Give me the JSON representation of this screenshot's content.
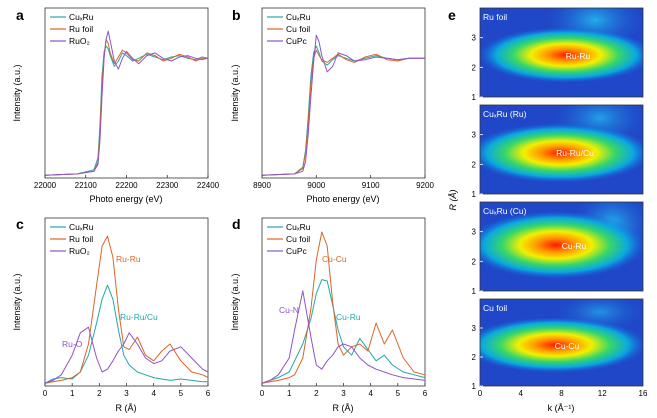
{
  "panels_text": {
    "a": {
      "letter": "a",
      "xlabel": "Photo energy (eV)",
      "ylabel": "Intensity (a.u.)",
      "legend": [
        "CuₓRu",
        "Ru foil",
        "RuO₂"
      ]
    },
    "b": {
      "letter": "b",
      "xlabel": "Photo energy (eV)",
      "ylabel": "Intensity (a.u.)",
      "legend": [
        "CuₓRu",
        "Cu foil",
        "CuPc"
      ]
    },
    "c": {
      "letter": "c",
      "xlabel": "R (Å)",
      "ylabel": "Intensity (a.u.)",
      "legend": [
        "CuₓRu",
        "Ru foil",
        "RuO₂"
      ],
      "annotations": [
        "Ru-Ru",
        "Ru-Ru/Cu",
        "Ru-O"
      ]
    },
    "d": {
      "letter": "d",
      "xlabel": "R (Å)",
      "ylabel": "Intensity (a.u.)",
      "legend": [
        "CuₓRu",
        "Cu foil",
        "CuPc"
      ],
      "annotations": [
        "Cu-Cu",
        "Cu-N",
        "Cu-Ru"
      ]
    },
    "e": {
      "letter": "e",
      "xlabel": "k (Å⁻¹)",
      "ylabel": "R (Å)",
      "subpanels": [
        {
          "label": "Ru foil",
          "peak": "Ru-Ru"
        },
        {
          "label": "CuₓRu (Ru)",
          "peak": "Ru-Ru/Cu"
        },
        {
          "label": "CuₓRu (Cu)",
          "peak": "Cu-Ru"
        },
        {
          "label": "Cu foil",
          "peak": "Cu-Cu"
        }
      ]
    }
  },
  "colors": {
    "series1": "#20a9a6",
    "series2": "#d9652a",
    "series3": "#8e55c8"
  },
  "chart_data": [
    {
      "panel": "a",
      "type": "line",
      "xlabel": "Photo energy (eV)",
      "ylabel": "Intensity (a.u.)",
      "xlim": [
        22000,
        22400
      ],
      "ylim": [
        0,
        1.25
      ],
      "xticks": [
        22000,
        22100,
        22200,
        22300,
        22400
      ],
      "series": [
        {
          "name": "CuₓRu",
          "x": [
            22000,
            22080,
            22120,
            22130,
            22135,
            22140,
            22145,
            22150,
            22155,
            22160,
            22170,
            22180,
            22190,
            22200,
            22215,
            22230,
            22250,
            22270,
            22290,
            22310,
            22330,
            22350,
            22370,
            22385,
            22400
          ],
          "y": [
            0.02,
            0.03,
            0.06,
            0.15,
            0.4,
            0.75,
            0.93,
            0.97,
            0.95,
            0.9,
            0.82,
            0.86,
            0.92,
            0.9,
            0.86,
            0.88,
            0.91,
            0.89,
            0.87,
            0.89,
            0.9,
            0.88,
            0.87,
            0.89,
            0.88
          ]
        },
        {
          "name": "Ru foil",
          "x": [
            22000,
            22080,
            22120,
            22130,
            22135,
            22140,
            22145,
            22150,
            22155,
            22160,
            22170,
            22180,
            22190,
            22200,
            22215,
            22230,
            22250,
            22270,
            22290,
            22310,
            22330,
            22350,
            22370,
            22385,
            22400
          ],
          "y": [
            0.02,
            0.03,
            0.05,
            0.12,
            0.35,
            0.7,
            0.9,
            1.02,
            0.99,
            0.92,
            0.84,
            0.89,
            0.94,
            0.92,
            0.87,
            0.86,
            0.92,
            0.9,
            0.86,
            0.88,
            0.91,
            0.89,
            0.86,
            0.88,
            0.88
          ]
        },
        {
          "name": "RuO₂",
          "x": [
            22000,
            22080,
            22120,
            22130,
            22135,
            22140,
            22145,
            22150,
            22155,
            22160,
            22170,
            22180,
            22190,
            22200,
            22215,
            22230,
            22250,
            22270,
            22290,
            22310,
            22330,
            22350,
            22370,
            22385,
            22400
          ],
          "y": [
            0.02,
            0.03,
            0.05,
            0.1,
            0.28,
            0.6,
            0.88,
            1.02,
            1.08,
            1.01,
            0.86,
            0.8,
            0.88,
            0.93,
            0.88,
            0.84,
            0.9,
            0.92,
            0.88,
            0.86,
            0.89,
            0.9,
            0.88,
            0.87,
            0.88
          ]
        }
      ]
    },
    {
      "panel": "b",
      "type": "line",
      "xlabel": "Photo energy (eV)",
      "ylabel": "Intensity (a.u.)",
      "xlim": [
        8900,
        9200
      ],
      "ylim": [
        0,
        1.25
      ],
      "xticks": [
        8900,
        9000,
        9100,
        9200
      ],
      "series": [
        {
          "name": "CuₓRu",
          "x": [
            8900,
            8960,
            8975,
            8980,
            8985,
            8990,
            8995,
            9000,
            9005,
            9010,
            9020,
            9030,
            9040,
            9055,
            9070,
            9090,
            9110,
            9130,
            9150,
            9170,
            9200
          ],
          "y": [
            0.02,
            0.03,
            0.08,
            0.2,
            0.45,
            0.75,
            0.92,
            0.97,
            0.92,
            0.86,
            0.83,
            0.87,
            0.9,
            0.88,
            0.86,
            0.88,
            0.9,
            0.88,
            0.87,
            0.88,
            0.88
          ]
        },
        {
          "name": "Cu foil",
          "x": [
            8900,
            8960,
            8975,
            8980,
            8985,
            8990,
            8995,
            9000,
            9005,
            9010,
            9020,
            9030,
            9040,
            9055,
            9070,
            9090,
            9110,
            9130,
            9150,
            9170,
            9200
          ],
          "y": [
            0.02,
            0.03,
            0.07,
            0.18,
            0.4,
            0.7,
            0.88,
            0.94,
            0.9,
            0.87,
            0.85,
            0.88,
            0.91,
            0.87,
            0.85,
            0.89,
            0.91,
            0.87,
            0.86,
            0.88,
            0.88
          ]
        },
        {
          "name": "CuPc",
          "x": [
            8900,
            8960,
            8975,
            8980,
            8985,
            8990,
            8995,
            9000,
            9005,
            9010,
            9020,
            9030,
            9040,
            9055,
            9070,
            9090,
            9110,
            9130,
            9150,
            9170,
            9200
          ],
          "y": [
            0.02,
            0.03,
            0.05,
            0.12,
            0.32,
            0.6,
            0.85,
            1.05,
            1.0,
            0.9,
            0.78,
            0.82,
            0.92,
            0.9,
            0.86,
            0.87,
            0.89,
            0.88,
            0.87,
            0.88,
            0.88
          ]
        }
      ]
    },
    {
      "panel": "c",
      "type": "line",
      "xlabel": "R (Å)",
      "ylabel": "Intensity (a.u.)",
      "xlim": [
        0,
        6
      ],
      "ylim": [
        0,
        1.2
      ],
      "xticks": [
        0,
        1,
        2,
        3,
        4,
        5,
        6
      ],
      "series": [
        {
          "name": "CuₓRu",
          "x": [
            0,
            0.3,
            0.6,
            1.0,
            1.3,
            1.6,
            1.9,
            2.1,
            2.3,
            2.5,
            2.7,
            2.9,
            3.1,
            3.4,
            3.7,
            4.0,
            4.3,
            4.6,
            5.0,
            5.4,
            5.8,
            6.0
          ],
          "y": [
            0.02,
            0.05,
            0.06,
            0.05,
            0.1,
            0.22,
            0.45,
            0.62,
            0.72,
            0.62,
            0.4,
            0.22,
            0.15,
            0.1,
            0.08,
            0.06,
            0.05,
            0.04,
            0.05,
            0.04,
            0.03,
            0.03
          ]
        },
        {
          "name": "Ru foil",
          "x": [
            0,
            0.3,
            0.6,
            1.0,
            1.3,
            1.6,
            1.9,
            2.1,
            2.3,
            2.5,
            2.7,
            2.9,
            3.1,
            3.4,
            3.7,
            4.0,
            4.3,
            4.6,
            5.0,
            5.4,
            5.8,
            6.0
          ],
          "y": [
            0.02,
            0.03,
            0.04,
            0.06,
            0.1,
            0.3,
            0.72,
            1.0,
            1.07,
            0.92,
            0.55,
            0.28,
            0.26,
            0.35,
            0.22,
            0.18,
            0.25,
            0.3,
            0.18,
            0.1,
            0.08,
            0.06
          ]
        },
        {
          "name": "RuO₂",
          "x": [
            0,
            0.3,
            0.6,
            1.0,
            1.3,
            1.6,
            1.9,
            2.1,
            2.3,
            2.5,
            2.7,
            2.9,
            3.1,
            3.4,
            3.7,
            4.0,
            4.3,
            4.6,
            5.0,
            5.4,
            5.8,
            6.0
          ],
          "y": [
            0.02,
            0.04,
            0.08,
            0.22,
            0.38,
            0.42,
            0.2,
            0.1,
            0.12,
            0.18,
            0.25,
            0.3,
            0.38,
            0.3,
            0.2,
            0.16,
            0.18,
            0.25,
            0.28,
            0.2,
            0.12,
            0.1
          ]
        }
      ]
    },
    {
      "panel": "d",
      "type": "line",
      "xlabel": "R (Å)",
      "ylabel": "Intensity (a.u.)",
      "xlim": [
        0,
        6
      ],
      "ylim": [
        0,
        1.2
      ],
      "xticks": [
        0,
        1,
        2,
        3,
        4,
        5,
        6
      ],
      "series": [
        {
          "name": "CuₓRu",
          "x": [
            0,
            0.3,
            0.6,
            1.0,
            1.2,
            1.5,
            1.8,
            2.0,
            2.2,
            2.4,
            2.6,
            2.8,
            3.0,
            3.3,
            3.6,
            3.9,
            4.2,
            4.5,
            4.8,
            5.2,
            5.6,
            6.0
          ],
          "y": [
            0.02,
            0.04,
            0.06,
            0.1,
            0.18,
            0.3,
            0.48,
            0.66,
            0.76,
            0.75,
            0.58,
            0.4,
            0.28,
            0.22,
            0.34,
            0.26,
            0.18,
            0.22,
            0.15,
            0.1,
            0.08,
            0.06
          ]
        },
        {
          "name": "Cu foil",
          "x": [
            0,
            0.3,
            0.6,
            1.0,
            1.2,
            1.5,
            1.8,
            2.0,
            2.2,
            2.4,
            2.6,
            2.8,
            3.0,
            3.3,
            3.6,
            3.9,
            4.2,
            4.5,
            4.8,
            5.2,
            5.6,
            6.0
          ],
          "y": [
            0.02,
            0.03,
            0.04,
            0.06,
            0.08,
            0.2,
            0.55,
            0.9,
            1.1,
            1.0,
            0.6,
            0.3,
            0.22,
            0.28,
            0.3,
            0.25,
            0.45,
            0.3,
            0.4,
            0.2,
            0.1,
            0.08
          ]
        },
        {
          "name": "CuPc",
          "x": [
            0,
            0.3,
            0.6,
            1.0,
            1.2,
            1.5,
            1.8,
            2.0,
            2.2,
            2.4,
            2.6,
            2.8,
            3.0,
            3.3,
            3.6,
            3.9,
            4.2,
            4.5,
            4.8,
            5.2,
            5.6,
            6.0
          ],
          "y": [
            0.02,
            0.04,
            0.08,
            0.2,
            0.4,
            0.68,
            0.35,
            0.15,
            0.12,
            0.18,
            0.22,
            0.28,
            0.3,
            0.28,
            0.2,
            0.15,
            0.12,
            0.1,
            0.08,
            0.06,
            0.05,
            0.04
          ]
        }
      ]
    },
    {
      "panel": "e",
      "type": "heatmap",
      "xlabel": "k (Å⁻¹)",
      "ylabel": "R (Å)",
      "xlim": [
        0,
        16
      ],
      "ylim": [
        1,
        4
      ],
      "xticks": [
        0,
        4,
        8,
        12,
        16
      ],
      "yticks": [
        1,
        2,
        3
      ],
      "maps": [
        {
          "name": "Ru foil",
          "peak_label": "Ru-Ru",
          "peak_k": 9.0,
          "peak_R": 2.4
        },
        {
          "name": "CuₓRu (Ru)",
          "peak_label": "Ru-Ru/Cu",
          "peak_k": 8.0,
          "peak_R": 2.3
        },
        {
          "name": "CuₓRu (Cu)",
          "peak_label": "Cu-Ru",
          "peak_k": 7.5,
          "peak_R": 2.3
        },
        {
          "name": "Cu foil",
          "peak_label": "Cu-Cu",
          "peak_k": 7.0,
          "peak_R": 2.2
        }
      ]
    }
  ]
}
